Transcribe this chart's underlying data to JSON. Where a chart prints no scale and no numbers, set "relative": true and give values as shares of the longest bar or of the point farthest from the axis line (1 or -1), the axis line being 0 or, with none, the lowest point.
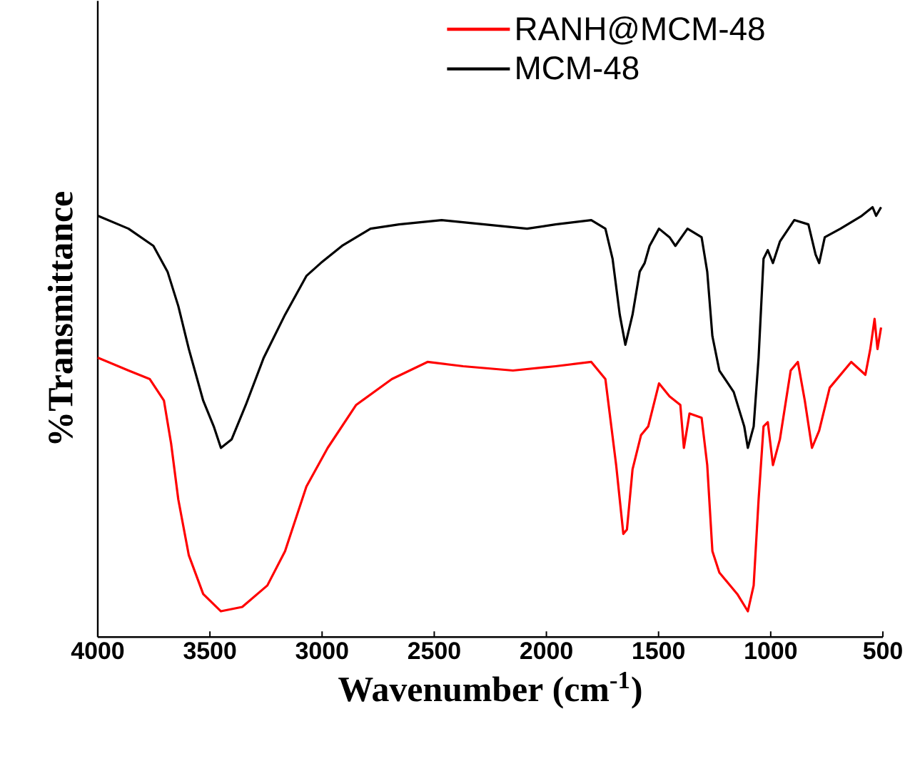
{
  "chart_data": {
    "type": "line",
    "relative": true,
    "xlabel": "Wavenumber (cm$^{-1}$)",
    "ylabel": "%Transmittance",
    "xlim": [
      4000,
      500
    ],
    "xticks": [
      4000,
      3500,
      3000,
      2500,
      2000,
      1500,
      1000,
      500
    ],
    "legend": "top right",
    "marker": "none",
    "line_style": "solid",
    "grid": false,
    "series": [
      {
        "name": "RANH@MCM-48",
        "color": "#ff0000",
        "x": [
          4000,
          3863,
          3768,
          3705,
          3673,
          3641,
          3594,
          3530,
          3451,
          3356,
          3244,
          3165,
          3070,
          2975,
          2848,
          2689,
          2530,
          2371,
          2149,
          1959,
          1800,
          1737,
          1689,
          1657,
          1641,
          1616,
          1578,
          1546,
          1498,
          1451,
          1403,
          1387,
          1362,
          1308,
          1283,
          1260,
          1229,
          1149,
          1102,
          1076,
          1054,
          1032,
          1013,
          990,
          959,
          911,
          879,
          848,
          816,
          784,
          737,
          641,
          578,
          556,
          537,
          524,
          508
        ],
        "values": [
          0.65,
          0.62,
          0.6,
          0.55,
          0.45,
          0.32,
          0.19,
          0.1,
          0.06,
          0.07,
          0.12,
          0.2,
          0.35,
          0.44,
          0.54,
          0.6,
          0.64,
          0.63,
          0.62,
          0.63,
          0.64,
          0.6,
          0.4,
          0.24,
          0.25,
          0.39,
          0.47,
          0.49,
          0.59,
          0.56,
          0.54,
          0.44,
          0.52,
          0.51,
          0.4,
          0.2,
          0.15,
          0.1,
          0.06,
          0.12,
          0.32,
          0.49,
          0.5,
          0.4,
          0.46,
          0.62,
          0.64,
          0.55,
          0.44,
          0.48,
          0.58,
          0.64,
          0.61,
          0.67,
          0.74,
          0.67,
          0.72
        ]
      },
      {
        "name": "MCM-48",
        "color": "#000000",
        "x": [
          4000,
          3863,
          3752,
          3689,
          3641,
          3594,
          3530,
          3483,
          3451,
          3403,
          3340,
          3260,
          3165,
          3070,
          3006,
          2911,
          2784,
          2657,
          2467,
          2276,
          2086,
          1959,
          1800,
          1737,
          1705,
          1673,
          1648,
          1616,
          1584,
          1562,
          1540,
          1498,
          1451,
          1425,
          1371,
          1308,
          1283,
          1260,
          1229,
          1165,
          1118,
          1102,
          1076,
          1054,
          1032,
          1013,
          990,
          959,
          895,
          832,
          800,
          784,
          759,
          689,
          594,
          546,
          530,
          508
        ],
        "values": [
          0.98,
          0.95,
          0.91,
          0.85,
          0.77,
          0.67,
          0.55,
          0.49,
          0.44,
          0.46,
          0.54,
          0.65,
          0.75,
          0.84,
          0.87,
          0.91,
          0.95,
          0.96,
          0.97,
          0.96,
          0.95,
          0.96,
          0.97,
          0.95,
          0.88,
          0.75,
          0.68,
          0.75,
          0.85,
          0.87,
          0.91,
          0.95,
          0.93,
          0.91,
          0.95,
          0.93,
          0.85,
          0.7,
          0.62,
          0.57,
          0.49,
          0.44,
          0.49,
          0.65,
          0.88,
          0.9,
          0.87,
          0.92,
          0.97,
          0.96,
          0.89,
          0.87,
          0.93,
          0.95,
          0.98,
          1.0,
          0.98,
          1.0
        ]
      }
    ]
  }
}
